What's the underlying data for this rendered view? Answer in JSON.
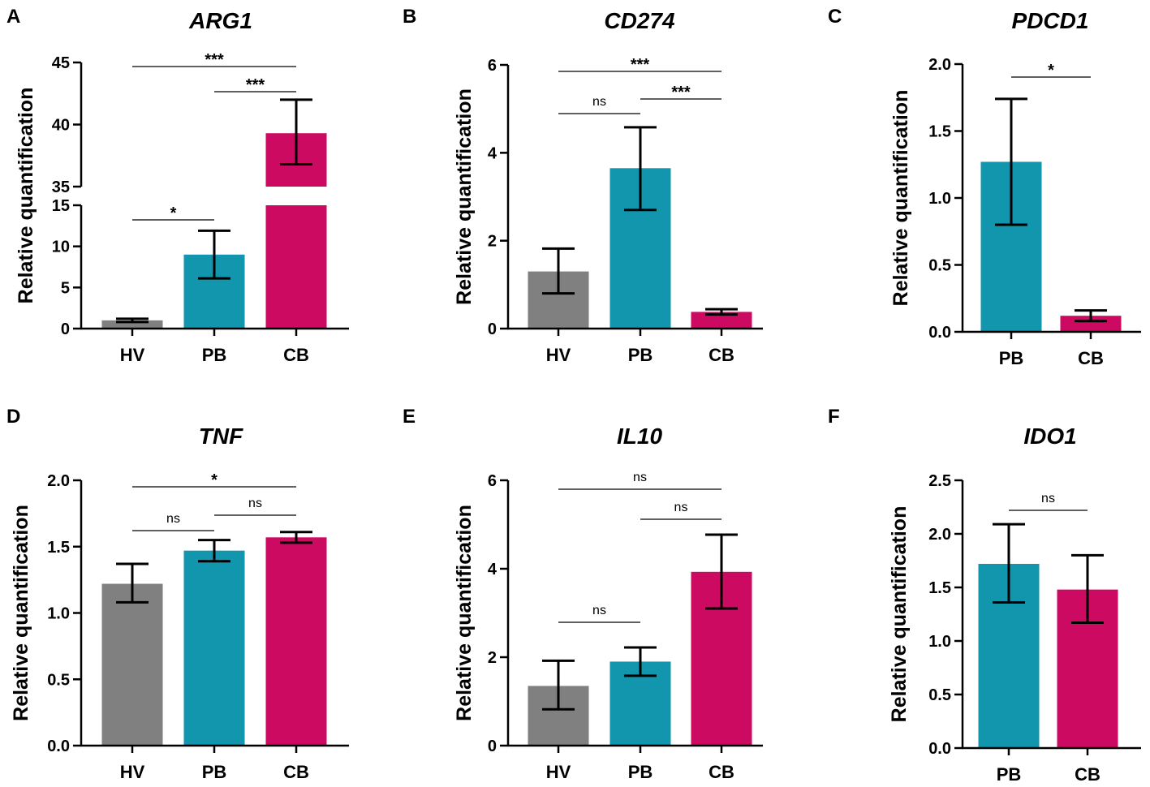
{
  "colors": {
    "HV": "#808080",
    "PB": "#1196ae",
    "CB": "#cc0a62",
    "axis": "#000000"
  },
  "chart_data": [
    {
      "panel": "A",
      "title": "ARG1",
      "type": "bar",
      "ylabel": "Relative quantification",
      "categories": [
        "HV",
        "PB",
        "CB"
      ],
      "values": [
        1.0,
        9.0,
        39.3
      ],
      "errors": [
        [
          0.8,
          1.2
        ],
        [
          6.1,
          11.9
        ],
        [
          36.8,
          42.0
        ]
      ],
      "axis_break": [
        15,
        35
      ],
      "ylim": [
        0,
        45
      ],
      "yticks": [
        0,
        5,
        10,
        15,
        35,
        40,
        45
      ],
      "ytick_labels": [
        "0",
        "5",
        "10",
        "15",
        "35",
        "40",
        "45"
      ],
      "significance": [
        {
          "from": "HV",
          "to": "CB",
          "label": "***"
        },
        {
          "from": "PB",
          "to": "CB",
          "label": "***"
        },
        {
          "from": "HV",
          "to": "PB",
          "label": "*"
        }
      ]
    },
    {
      "panel": "B",
      "title": "CD274",
      "type": "bar",
      "ylabel": "Relative quantification",
      "categories": [
        "HV",
        "PB",
        "CB"
      ],
      "values": [
        1.3,
        3.65,
        0.38
      ],
      "errors": [
        [
          0.8,
          1.82
        ],
        [
          2.7,
          4.58
        ],
        [
          0.32,
          0.44
        ]
      ],
      "ylim": [
        0,
        6
      ],
      "yticks": [
        0,
        2,
        4,
        6
      ],
      "ytick_labels": [
        "0",
        "2",
        "4",
        "6"
      ],
      "significance": [
        {
          "from": "HV",
          "to": "CB",
          "label": "***"
        },
        {
          "from": "PB",
          "to": "CB",
          "label": "***"
        },
        {
          "from": "HV",
          "to": "PB",
          "label": "ns"
        }
      ]
    },
    {
      "panel": "C",
      "title": "PDCD1",
      "type": "bar",
      "ylabel": "Relative quantification",
      "categories": [
        "PB",
        "CB"
      ],
      "values": [
        1.27,
        0.12
      ],
      "errors": [
        [
          0.8,
          1.74
        ],
        [
          0.08,
          0.16
        ]
      ],
      "ylim": [
        0,
        2.0
      ],
      "yticks": [
        0,
        0.5,
        1.0,
        1.5,
        2.0
      ],
      "ytick_labels": [
        "0.0",
        "0.5",
        "1.0",
        "1.5",
        "2.0"
      ],
      "significance": [
        {
          "from": "PB",
          "to": "CB",
          "label": "*"
        }
      ]
    },
    {
      "panel": "D",
      "title": "TNF",
      "type": "bar",
      "ylabel": "Relative quantification",
      "categories": [
        "HV",
        "PB",
        "CB"
      ],
      "values": [
        1.22,
        1.47,
        1.57
      ],
      "errors": [
        [
          1.08,
          1.37
        ],
        [
          1.39,
          1.55
        ],
        [
          1.53,
          1.61
        ]
      ],
      "ylim": [
        0,
        2.0
      ],
      "yticks": [
        0,
        0.5,
        1.0,
        1.5,
        2.0
      ],
      "ytick_labels": [
        "0.0",
        "0.5",
        "1.0",
        "1.5",
        "2.0"
      ],
      "significance": [
        {
          "from": "HV",
          "to": "CB",
          "label": "*"
        },
        {
          "from": "PB",
          "to": "CB",
          "label": "ns"
        },
        {
          "from": "HV",
          "to": "PB",
          "label": "ns"
        }
      ]
    },
    {
      "panel": "E",
      "title": "IL10",
      "type": "bar",
      "ylabel": "Relative quantification",
      "categories": [
        "HV",
        "PB",
        "CB"
      ],
      "values": [
        1.35,
        1.9,
        3.93
      ],
      "errors": [
        [
          0.82,
          1.92
        ],
        [
          1.58,
          2.22
        ],
        [
          3.1,
          4.77
        ]
      ],
      "ylim": [
        0,
        6
      ],
      "yticks": [
        0,
        2,
        4,
        6
      ],
      "ytick_labels": [
        "0",
        "2",
        "4",
        "6"
      ],
      "significance": [
        {
          "from": "HV",
          "to": "CB",
          "label": "ns"
        },
        {
          "from": "PB",
          "to": "CB",
          "label": "ns"
        },
        {
          "from": "HV",
          "to": "PB",
          "label": "ns"
        }
      ]
    },
    {
      "panel": "F",
      "title": "IDO1",
      "type": "bar",
      "ylabel": "Relative quantification",
      "categories": [
        "PB",
        "CB"
      ],
      "values": [
        1.72,
        1.48
      ],
      "errors": [
        [
          1.36,
          2.09
        ],
        [
          1.17,
          1.8
        ]
      ],
      "ylim": [
        0,
        2.5
      ],
      "yticks": [
        0,
        0.5,
        1.0,
        1.5,
        2.0,
        2.5
      ],
      "ytick_labels": [
        "0.0",
        "0.5",
        "1.0",
        "1.5",
        "2.0",
        "2.5"
      ],
      "significance": [
        {
          "from": "PB",
          "to": "CB",
          "label": "ns"
        }
      ]
    }
  ]
}
